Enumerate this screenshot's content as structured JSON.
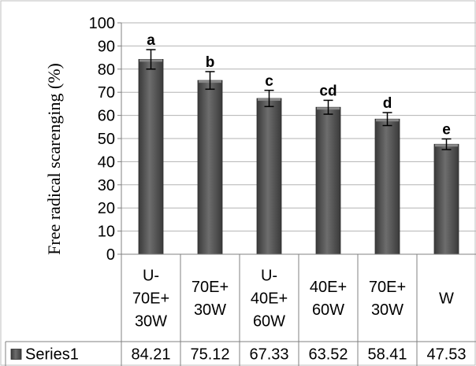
{
  "chart_data": {
    "type": "bar",
    "ylabel": "Free radical scarenging (%)",
    "ylim": [
      0,
      100
    ],
    "y_ticks": [
      "0",
      "10",
      "20",
      "30",
      "40",
      "50",
      "60",
      "70",
      "80",
      "90",
      "100"
    ],
    "grid": true,
    "categories": [
      [
        "U-",
        "70E+",
        "30W"
      ],
      [
        "70E+",
        "30W"
      ],
      [
        "U-",
        "40E+",
        "60W"
      ],
      [
        "40E+",
        "60W"
      ],
      [
        "70E+",
        "30W"
      ],
      [
        "W"
      ]
    ],
    "series": [
      {
        "name": "Series1",
        "values": [
          84.21,
          75.12,
          67.33,
          63.52,
          58.41,
          47.53
        ],
        "value_labels": [
          "84.21",
          "75.12",
          "67.33",
          "63.52",
          "58.41",
          "47.53"
        ],
        "error": [
          4.2,
          3.8,
          3.5,
          3.0,
          2.8,
          2.3
        ],
        "significance_letters": [
          "a",
          "b",
          "c",
          "cd",
          "d",
          "e"
        ],
        "color": "#595959"
      }
    ],
    "data_table": true
  }
}
